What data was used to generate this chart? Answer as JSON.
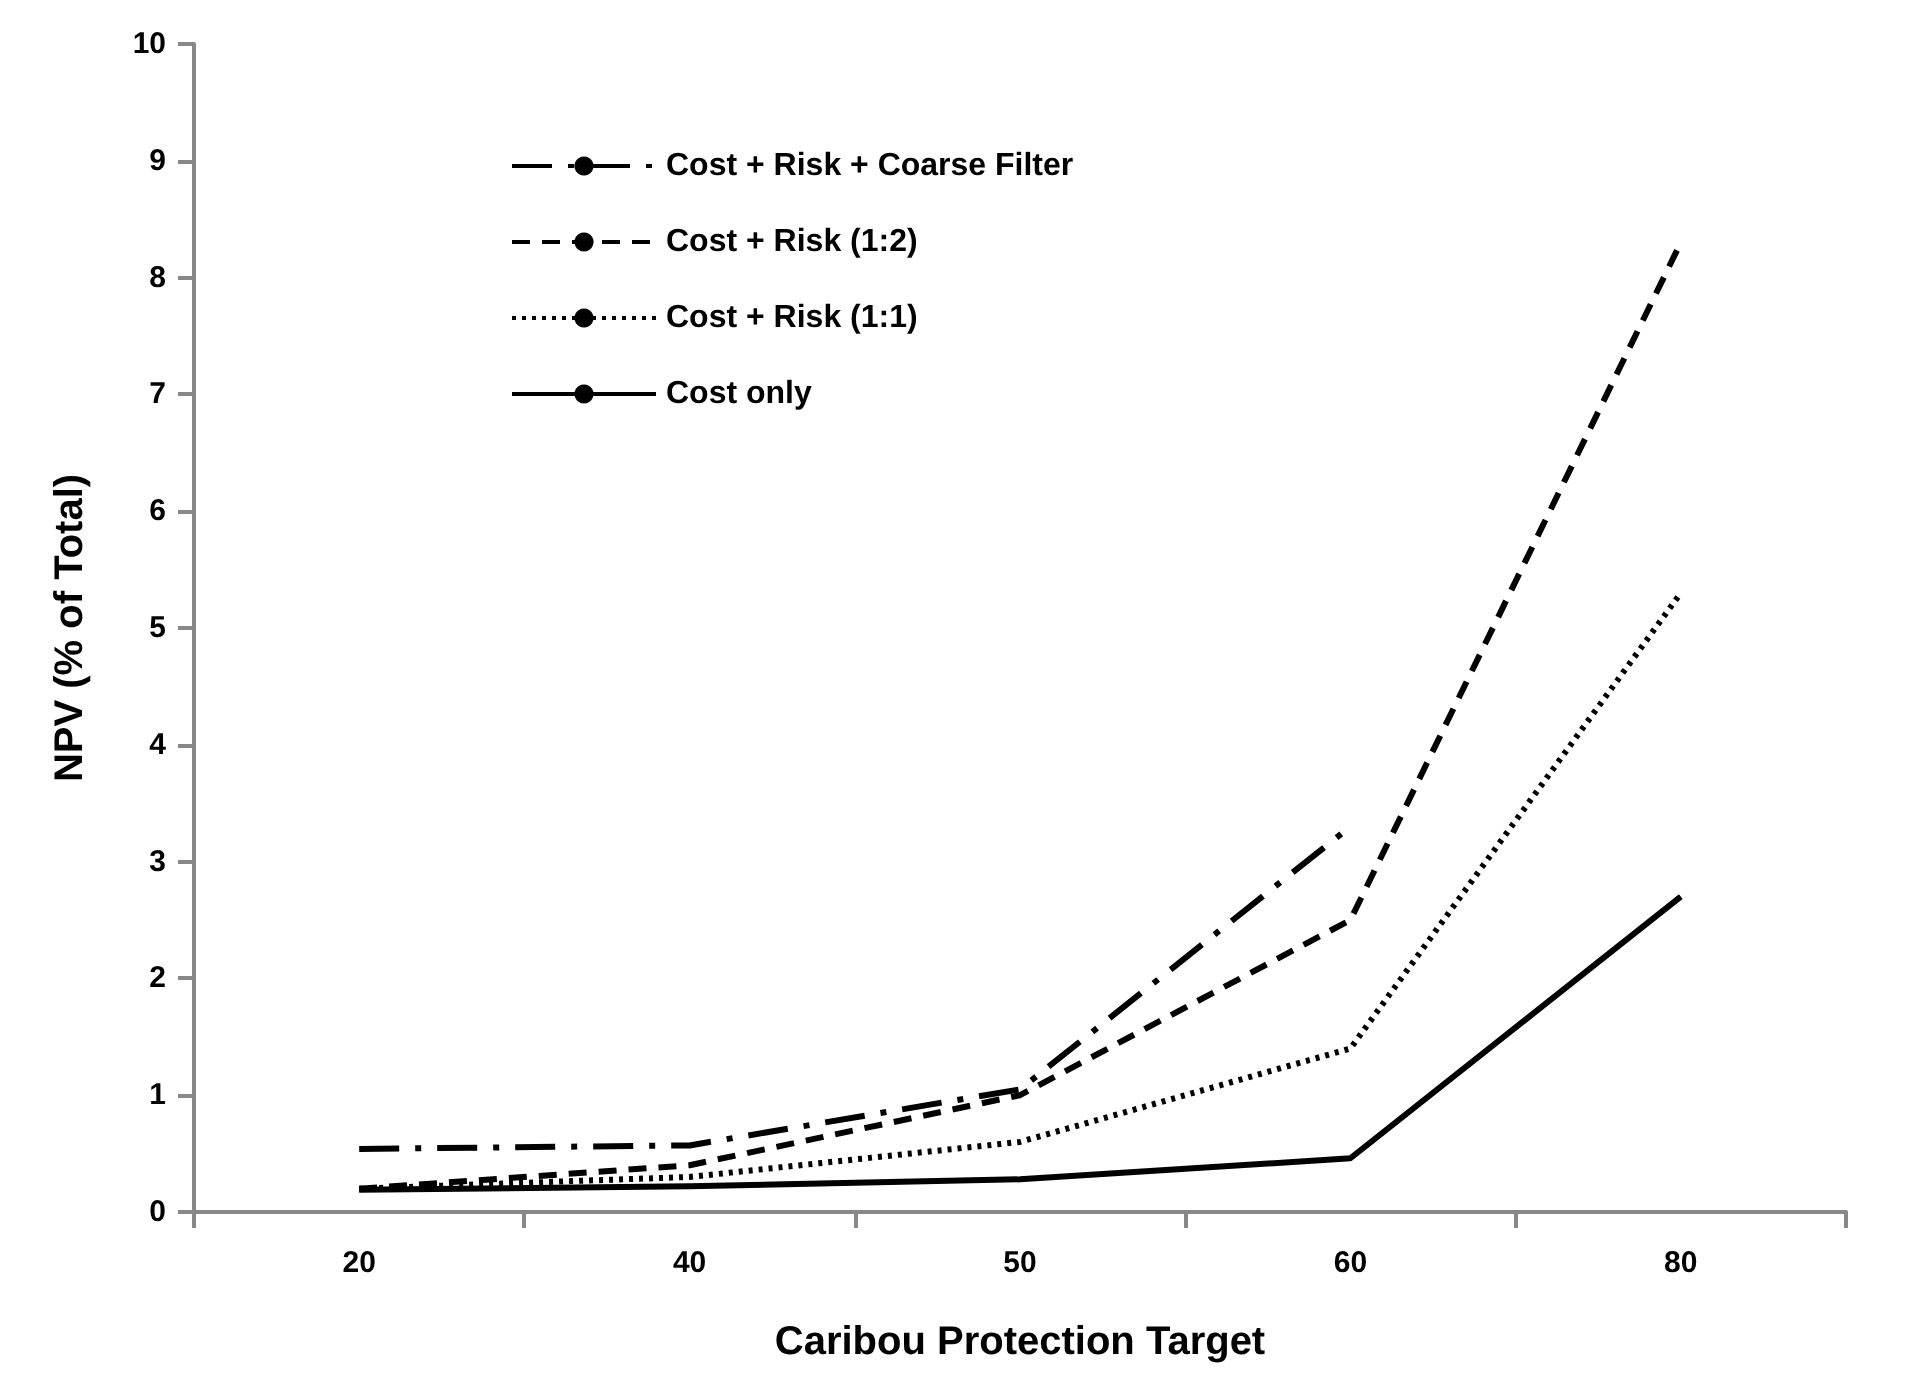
{
  "chart_data": {
    "type": "line",
    "xlabel": "Caribou Protection Target",
    "ylabel": "NPV (% of Total)",
    "categories": [
      "20",
      "40",
      "50",
      "60",
      "80"
    ],
    "ylim": [
      0,
      10
    ],
    "yticks": [
      0,
      1,
      2,
      3,
      4,
      5,
      6,
      7,
      8,
      9,
      10
    ],
    "grid": false,
    "legend": "top left",
    "marker": "none",
    "series": [
      {
        "name": "Cost + Risk + Coarse Filter",
        "color": "#000000",
        "line_style": "dashdot",
        "values": [
          0.54,
          0.57,
          1.05,
          3.3,
          null
        ]
      },
      {
        "name": "Cost + Risk (1:2)",
        "color": "#000000",
        "line_style": "dashed",
        "values": [
          0.2,
          0.4,
          1.0,
          2.5,
          8.3
        ]
      },
      {
        "name": "Cost + Risk (1:1)",
        "color": "#000000",
        "line_style": "dotted",
        "values": [
          0.2,
          0.3,
          0.6,
          1.4,
          5.3
        ]
      },
      {
        "name": "Cost only",
        "color": "#000000",
        "line_style": "solid",
        "values": [
          0.19,
          0.22,
          0.28,
          0.46,
          2.7
        ]
      }
    ]
  }
}
